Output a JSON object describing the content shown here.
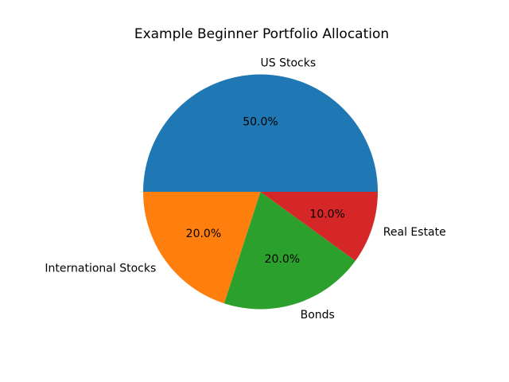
{
  "chart_data": {
    "type": "pie",
    "title": "Example Beginner Portfolio Allocation",
    "labels": [
      "US Stocks",
      "International Stocks",
      "Bonds",
      "Real Estate"
    ],
    "values": [
      50.0,
      20.0,
      20.0,
      10.0
    ],
    "pct_labels": [
      "50.0%",
      "20.0%",
      "20.0%",
      "10.0%"
    ],
    "colors": [
      "#1f77b4",
      "#ff7f0e",
      "#2ca02c",
      "#d62728"
    ],
    "start_angle_deg": 0,
    "direction": "counterclockwise",
    "label_distance": 1.1,
    "pct_distance": 0.6,
    "text_color": "#000000",
    "background_color": "#ffffff",
    "legend": "none"
  }
}
